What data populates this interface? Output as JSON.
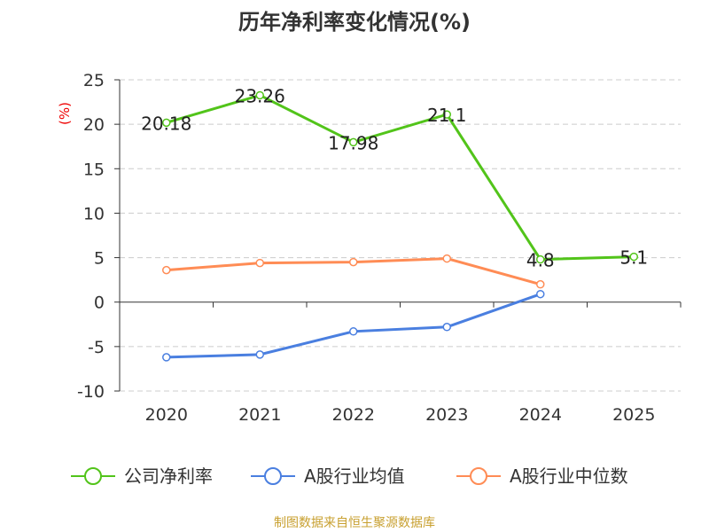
{
  "chart_data": {
    "type": "line",
    "title": "历年净利率变化情况(%)",
    "ylabel": "(%)",
    "categories": [
      "2020",
      "2021",
      "2022",
      "2023",
      "2024",
      "2025"
    ],
    "ylim": [
      -10,
      25
    ],
    "yticks": [
      25,
      20,
      15,
      10,
      5,
      0,
      -5,
      -10
    ],
    "grid": true,
    "legend_position": "bottom",
    "series": [
      {
        "name": "公司净利率",
        "color": "#52c41a",
        "values": [
          20.18,
          23.26,
          17.98,
          21.1,
          4.8,
          5.1
        ],
        "labels": [
          "20.18",
          "23.26",
          "17.98",
          "21.1",
          "4.8",
          "5.1"
        ]
      },
      {
        "name": "A股行业均值",
        "color": "#4a7fe0",
        "values": [
          -6.2,
          -5.9,
          -3.3,
          -2.8,
          0.9,
          null
        ]
      },
      {
        "name": "A股行业中位数",
        "color": "#ff8c55",
        "values": [
          3.6,
          4.4,
          4.5,
          4.9,
          2.0,
          null
        ]
      }
    ]
  },
  "source": "制图数据来自恒生聚源数据库"
}
